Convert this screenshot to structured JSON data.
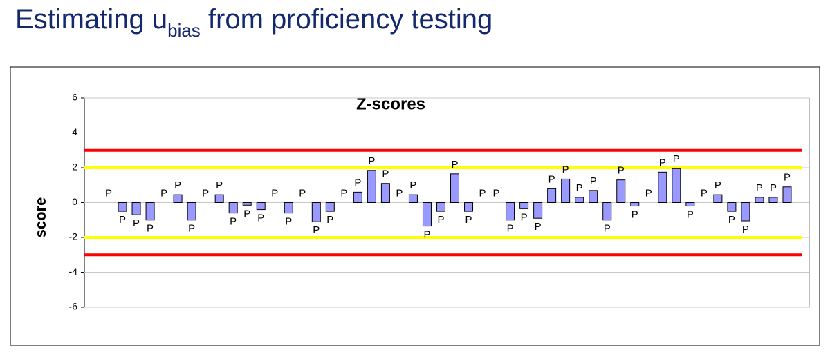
{
  "header": {
    "title_parts": [
      "Estimating u",
      "bias",
      " from proficiency testing"
    ]
  },
  "chart_data": {
    "type": "bar",
    "title": "Z-scores",
    "y_label": "score",
    "values": [
      0,
      -0.5,
      -0.7,
      -1.0,
      0,
      0.45,
      -1.0,
      0,
      0.45,
      -0.6,
      -0.15,
      -0.4,
      0,
      -0.6,
      0,
      -1.1,
      -0.5,
      0,
      0.6,
      1.85,
      1.1,
      0,
      0.45,
      -1.35,
      -0.5,
      1.65,
      -0.5,
      0,
      0,
      -1.0,
      -0.35,
      -0.9,
      0.8,
      1.35,
      0.3,
      0.7,
      -1.0,
      1.3,
      -0.2,
      0,
      1.75,
      1.95,
      -0.2,
      0,
      0.45,
      -0.5,
      -1.05,
      0.3,
      0.3,
      0.9
    ],
    "value_labels": [
      "P",
      "P",
      "P",
      "P",
      "P",
      "P",
      "P",
      "P",
      "P",
      "P",
      "P",
      "P",
      "P",
      "P",
      "P",
      "P",
      "P",
      "P",
      "P",
      "P",
      "P",
      "P",
      "P",
      "P",
      "P",
      "P",
      "P",
      "P",
      "P",
      "P",
      "P",
      "P",
      "P",
      "P",
      "P",
      "P",
      "P",
      "P",
      "P",
      "P",
      "P",
      "P",
      "P",
      "P",
      "P",
      "P",
      "P",
      "P",
      "P",
      "P"
    ],
    "color": "#9999ff",
    "ylim": [
      -6,
      6
    ],
    "yticks": [
      -6,
      -4,
      -2,
      0,
      2,
      4,
      6
    ],
    "grid": true,
    "reference_lines": [
      {
        "value": 3,
        "color": "#ff0000"
      },
      {
        "value": -3,
        "color": "#ff0000"
      },
      {
        "value": 2,
        "color": "#ffff00"
      },
      {
        "value": -2,
        "color": "#ffff00"
      }
    ]
  }
}
